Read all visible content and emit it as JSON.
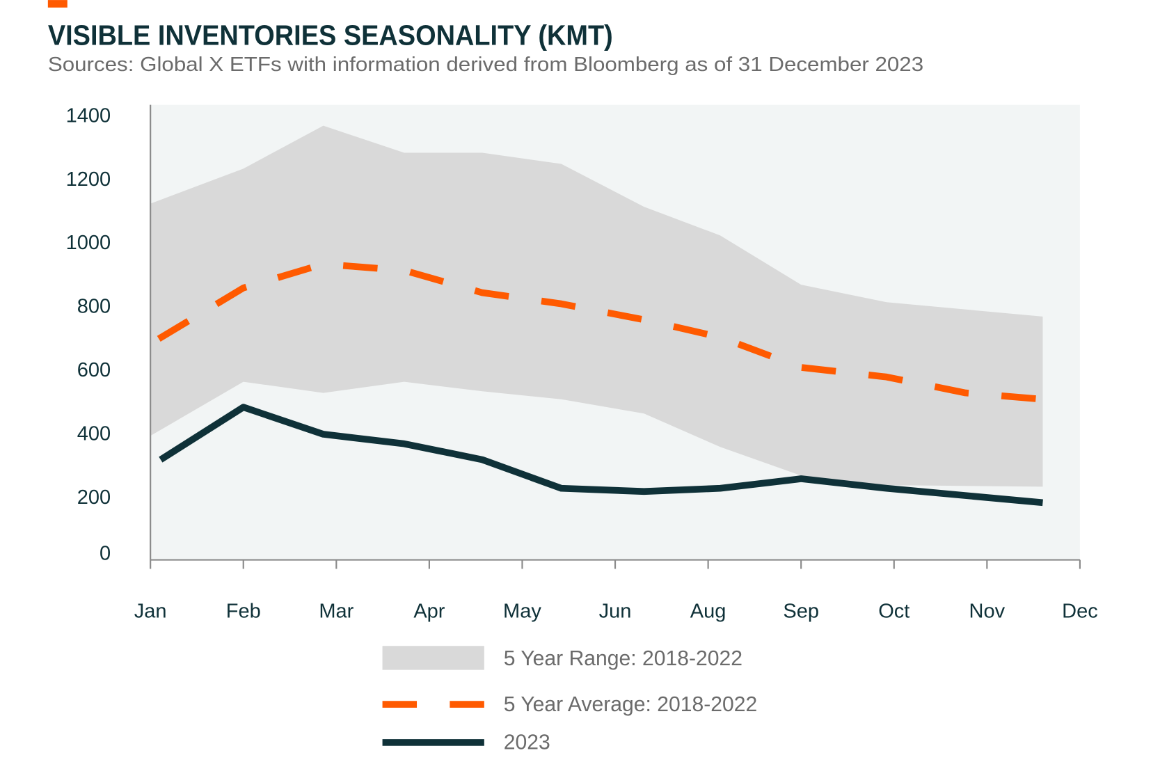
{
  "title": "VISIBLE INVENTORIES SEASONALITY (KMT)",
  "subtitle": "Sources: Global X ETFs with information derived from Bloomberg as of 31 December 2023",
  "colors": {
    "accent": "#ff5a00",
    "dark": "#0f3138",
    "band": "#d9d9d9",
    "plot_bg": "#f2f5f5"
  },
  "chart_data": {
    "type": "line",
    "title": "VISIBLE INVENTORIES SEASONALITY (KMT)",
    "xlabel": "",
    "ylabel": "",
    "categories": [
      "Jan",
      "Feb",
      "Mar",
      "Apr",
      "May",
      "Jun",
      "Aug",
      "Sep",
      "Oct",
      "Nov",
      "Dec"
    ],
    "ylim": [
      0,
      1400
    ],
    "yticks": [
      "0",
      "200",
      "400",
      "600",
      "800",
      "1000",
      "1200",
      "1400"
    ],
    "grid": false,
    "legend": "bottom",
    "range_band": {
      "name": "5 Year Range: 2018-2022",
      "x": [
        0,
        1,
        1.86,
        2.73,
        3.57,
        4.42,
        5.31,
        6.13,
        7.0,
        7.92,
        9.6
      ],
      "upper": [
        1120,
        1230,
        1365,
        1280,
        1280,
        1245,
        1110,
        1020,
        865,
        810,
        765
      ],
      "lower": [
        390,
        560,
        525,
        560,
        530,
        505,
        460,
        355,
        265,
        235,
        230
      ]
    },
    "series": [
      {
        "name": "5 Year Average: 2018-2022",
        "style": "dashed",
        "x": [
          0.09,
          1,
          1.86,
          2.73,
          3.57,
          4.42,
          5.31,
          6.13,
          7.0,
          7.92,
          8.77,
          9.6
        ],
        "values": [
          695,
          855,
          930,
          910,
          840,
          805,
          755,
          700,
          605,
          575,
          525,
          505
        ]
      },
      {
        "name": "2023",
        "style": "solid",
        "x": [
          0.11,
          1,
          1.86,
          2.73,
          3.57,
          4.42,
          5.31,
          6.13,
          7.0,
          7.92,
          9.6
        ],
        "values": [
          315,
          480,
          395,
          365,
          315,
          225,
          215,
          225,
          255,
          225,
          180
        ]
      }
    ]
  }
}
